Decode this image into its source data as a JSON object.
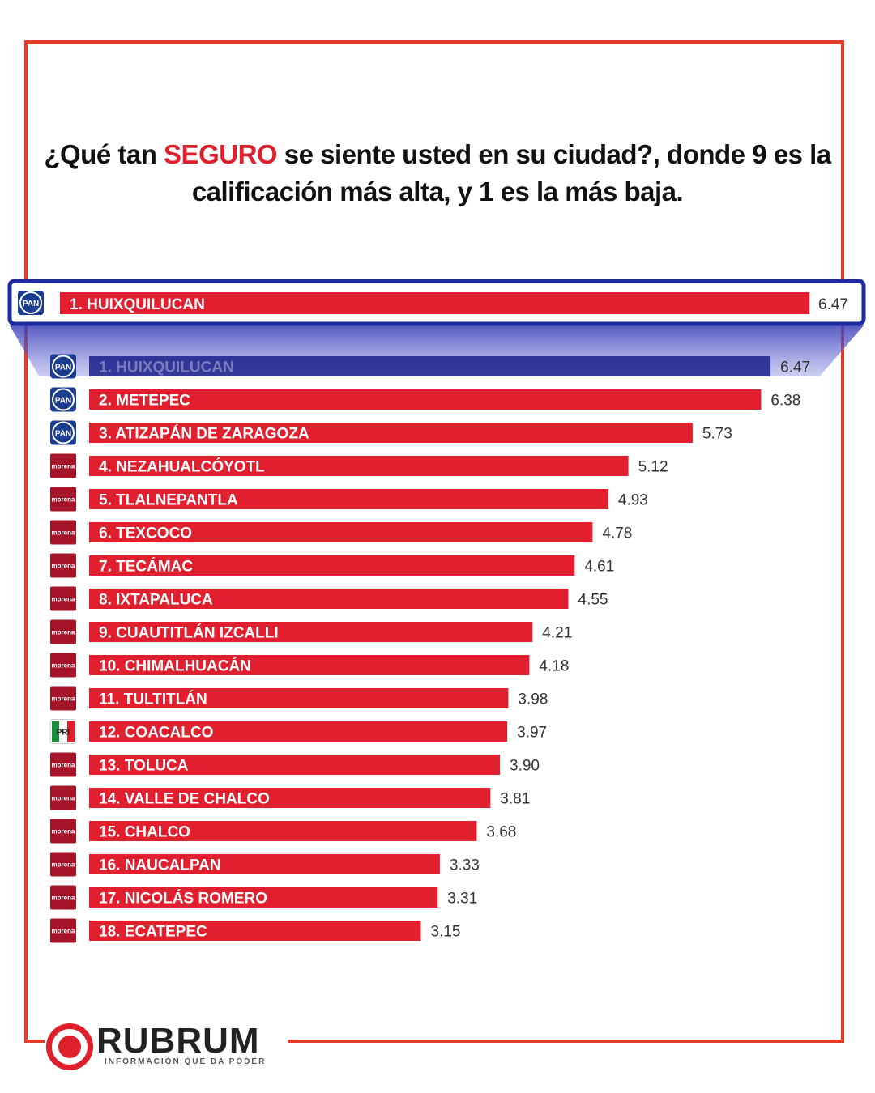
{
  "title": {
    "before": "¿Qué tan ",
    "highlight": "SEGURO",
    "after": " se siente usted en su ciudad?, donde 9 es la",
    "line2": "calificación más alta, y  1 es la más baja."
  },
  "colors": {
    "bar": "#e21f2e",
    "frame": "#e23b27",
    "highlight_border": "#1f2aa0",
    "highlight_fill": "#1a1f8a",
    "pan": "#1b3d8f",
    "morena": "#a5152a",
    "pri_green": "#1a8c3a"
  },
  "featured": {
    "label": "1. HUIXQUILUCAN",
    "value": "6.47",
    "party": "PAN"
  },
  "chart_data": {
    "type": "bar",
    "orientation": "horizontal",
    "title": "¿Qué tan SEGURO se siente usted en su ciudad?, donde 9 es la calificación más alta, y  1 es la más baja.",
    "categories": [
      "1. HUIXQUILUCAN",
      "2. METEPEC",
      "3. ATIZAPÁN DE ZARAGOZA",
      "4. NEZAHUALCÓYOTL",
      "5. TLALNEPANTLA",
      "6. TEXCOCO",
      "7. TECÁMAC",
      "8. IXTAPALUCA",
      "9. CUAUTITLÁN IZCALLI",
      "10. CHIMALHUACÁN",
      "11. TULTITLÁN",
      "12. COACALCO",
      "13. TOLUCA",
      "14. VALLE DE CHALCO",
      "15. CHALCO",
      "16. NAUCALPAN",
      "17. NICOLÁS ROMERO",
      "18. ECATEPEC"
    ],
    "values": [
      6.47,
      6.38,
      5.73,
      5.12,
      4.93,
      4.78,
      4.61,
      4.55,
      4.21,
      4.18,
      3.98,
      3.97,
      3.9,
      3.81,
      3.68,
      3.33,
      3.31,
      3.15
    ],
    "value_labels": [
      "6.47",
      "6.38",
      "5.73",
      "5.12",
      "4.93",
      "4.78",
      "4.61",
      "4.55",
      "4.21",
      "4.18",
      "3.98",
      "3.97",
      "3.90",
      "3.81",
      "3.68",
      "3.33",
      "3.31",
      "3.15"
    ],
    "parties": [
      "PAN",
      "PAN",
      "PAN",
      "morena",
      "morena",
      "morena",
      "morena",
      "morena",
      "morena",
      "morena",
      "morena",
      "PRI",
      "morena",
      "morena",
      "morena",
      "morena",
      "morena",
      "morena"
    ],
    "xlim": [
      0,
      7
    ]
  },
  "party_labels": {
    "PAN": "PAN",
    "morena": "morena",
    "PRI": "PRI"
  },
  "brand": {
    "name": "RUBRUM",
    "tagline": "INFORMACIÓN QUE DA PODER"
  }
}
